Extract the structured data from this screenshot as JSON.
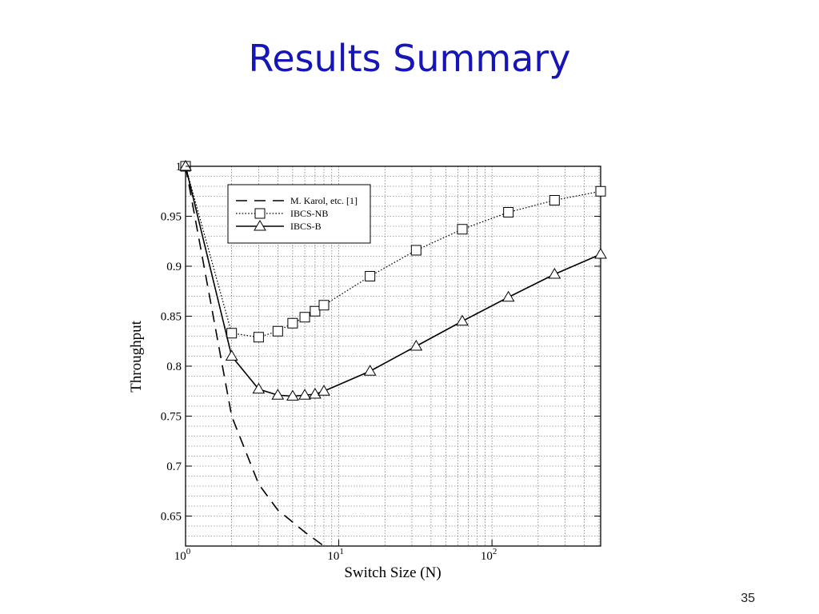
{
  "slide": {
    "title": "Results Summary",
    "page_number": "35"
  },
  "chart_data": {
    "type": "line",
    "xlabel": "Switch Size (N)",
    "ylabel": "Throughput",
    "x_scale": "log",
    "xlim": [
      1,
      512
    ],
    "ylim": [
      0.62,
      1.0
    ],
    "grid": true,
    "legend_position": "top-left",
    "x_ticks": [
      {
        "base": "10",
        "exp": "0",
        "value": 1
      },
      {
        "base": "10",
        "exp": "1",
        "value": 10
      },
      {
        "base": "10",
        "exp": "2",
        "value": 100
      }
    ],
    "y_ticks": [
      {
        "label": "1",
        "value": 1.0
      },
      {
        "label": "0.95",
        "value": 0.95
      },
      {
        "label": "0.9",
        "value": 0.9
      },
      {
        "label": "0.85",
        "value": 0.85
      },
      {
        "label": "0.8",
        "value": 0.8
      },
      {
        "label": "0.75",
        "value": 0.75
      },
      {
        "label": "0.7",
        "value": 0.7
      },
      {
        "label": "0.65",
        "value": 0.65
      }
    ],
    "series": [
      {
        "name": "M. Karol, etc. [1]",
        "style": "dashed",
        "marker": "none",
        "x": [
          1,
          2,
          3,
          4,
          5,
          6,
          8
        ],
        "y": [
          1.0,
          0.75,
          0.682,
          0.656,
          0.644,
          0.634,
          0.62
        ]
      },
      {
        "name": "IBCS-NB",
        "style": "dotted",
        "marker": "square",
        "x": [
          1,
          2,
          3,
          4,
          5,
          6,
          7,
          8,
          16,
          32,
          64,
          128,
          256,
          512
        ],
        "y": [
          1.0,
          0.833,
          0.829,
          0.835,
          0.843,
          0.849,
          0.855,
          0.861,
          0.89,
          0.916,
          0.937,
          0.954,
          0.966,
          0.975
        ]
      },
      {
        "name": "IBCS-B",
        "style": "solid",
        "marker": "triangle",
        "x": [
          1,
          2,
          3,
          4,
          5,
          6,
          7,
          8,
          16,
          32,
          64,
          128,
          256,
          512
        ],
        "y": [
          1.0,
          0.81,
          0.777,
          0.771,
          0.77,
          0.771,
          0.772,
          0.775,
          0.795,
          0.82,
          0.845,
          0.869,
          0.892,
          0.912
        ]
      }
    ]
  }
}
